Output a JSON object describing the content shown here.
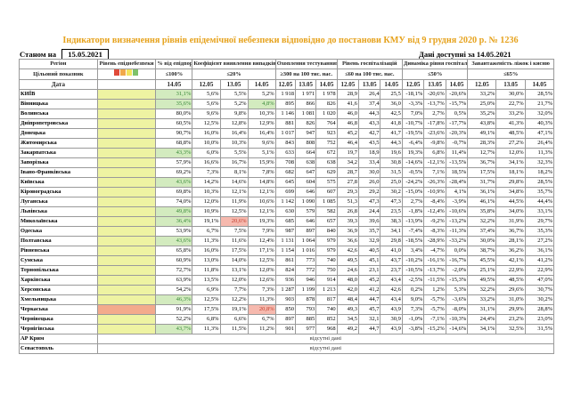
{
  "title": "Індикатори визначення рівнів епідемічної небезпеки відповідно до постанови КМУ від 9 грудня 2020 р. № 1236",
  "status_label": "Станом на",
  "status_date": "15.05.2021",
  "data_available": "Дані доступні за 14.05.2021",
  "headers": {
    "region": "Регіон",
    "target": "Цільовий показник",
    "date": "Дата",
    "level": "Рівень епіднебезпеки",
    "oxygen": "% від епідпорогу",
    "coef": "Коефіцієнт виявлення випадків інфікування",
    "testing": "Охоплення тестуванням",
    "hosp": "Рівень госпіталізацій",
    "dyn": "Динаміка рівня госпіталізацій",
    "beds": "Завантаженість ліжок і кисню"
  },
  "thresholds": {
    "oxygen": "≤100%",
    "coef": "≤20%",
    "testing": "≥300 на 100 тис. нас.",
    "hosp": "≤60 на 100 тис. нас.",
    "dyn": "≤50%",
    "beds": "≤65%"
  },
  "dates": {
    "oxygen": "14.05",
    "coef": [
      "12.05",
      "13.05",
      "14.05"
    ],
    "testing": [
      "12.05",
      "13.05",
      "14.05"
    ],
    "hosp": [
      "12.05",
      "13.05",
      "14.05"
    ],
    "dyn": [
      "12.05",
      "13.05",
      "14.05"
    ],
    "beds": [
      "12.05",
      "13.05",
      "14.05"
    ]
  },
  "legend_colors": [
    "#e04b3a",
    "#f1a84a",
    "#f3e45c",
    "#7fc26b"
  ],
  "level_green": "#eef3a2",
  "level_red": "#f3aa8c",
  "missing_text": "відсутні дані",
  "regions": [
    {
      "name": "КИЇВ",
      "pct": "31,1%",
      "pg": 1,
      "coef": [
        "5,6%",
        "5,5%",
        "5,2%"
      ],
      "cf": [
        0,
        0,
        0
      ],
      "test": [
        "1 918",
        "1 971",
        "1 978"
      ],
      "hosp": [
        "28,9",
        "26,4",
        "25,5"
      ],
      "dyn": [
        "-18,1%",
        "-20,6%",
        "-20,6%"
      ],
      "beds": [
        "33,2%",
        "30,0%",
        "28,5%"
      ],
      "lvl": "g"
    },
    {
      "name": "Вінницька",
      "pct": "35,6%",
      "pg": 1,
      "coef": [
        "5,6%",
        "5,2%",
        "4,8%"
      ],
      "cf": [
        0,
        0,
        1
      ],
      "test": [
        "895",
        "866",
        "826"
      ],
      "hosp": [
        "41,6",
        "37,4",
        "36,0"
      ],
      "dyn": [
        "-3,3%",
        "-13,7%",
        "-15,7%"
      ],
      "beds": [
        "25,0%",
        "22,7%",
        "21,7%"
      ],
      "lvl": "g"
    },
    {
      "name": "Волинська",
      "pct": "80,0%",
      "pg": 0,
      "coef": [
        "9,6%",
        "9,8%",
        "10,3%"
      ],
      "cf": [
        0,
        0,
        0
      ],
      "test": [
        "1 146",
        "1 081",
        "1 020"
      ],
      "hosp": [
        "46,0",
        "44,3",
        "42,5"
      ],
      "dyn": [
        "7,0%",
        "2,7%",
        "0,5%"
      ],
      "beds": [
        "35,2%",
        "33,2%",
        "32,0%"
      ],
      "lvl": "g"
    },
    {
      "name": "Дніпропетровська",
      "pct": "60,5%",
      "pg": 0,
      "coef": [
        "12,5%",
        "12,8%",
        "12,9%"
      ],
      "cf": [
        0,
        0,
        0
      ],
      "test": [
        "881",
        "826",
        "764"
      ],
      "hosp": [
        "46,8",
        "43,3",
        "41,8"
      ],
      "dyn": [
        "-10,7%",
        "-17,8%",
        "-17,7%"
      ],
      "beds": [
        "43,8%",
        "41,3%",
        "40,3%"
      ],
      "lvl": "g"
    },
    {
      "name": "Донецька",
      "pct": "90,7%",
      "pg": 0,
      "coef": [
        "16,0%",
        "16,4%",
        "16,4%"
      ],
      "cf": [
        0,
        0,
        0
      ],
      "test": [
        "1 017",
        "947",
        "923"
      ],
      "hosp": [
        "45,2",
        "42,7",
        "41,7"
      ],
      "dyn": [
        "-19,5%",
        "-23,6%",
        "-20,3%"
      ],
      "beds": [
        "49,1%",
        "48,5%",
        "47,1%"
      ],
      "lvl": "g"
    },
    {
      "name": "Житомирська",
      "pct": "68,8%",
      "pg": 0,
      "coef": [
        "10,0%",
        "10,3%",
        "9,6%"
      ],
      "cf": [
        0,
        0,
        0
      ],
      "test": [
        "843",
        "808",
        "752"
      ],
      "hosp": [
        "46,4",
        "43,5",
        "44,3"
      ],
      "dyn": [
        "-6,4%",
        "-9,8%",
        "-0,7%"
      ],
      "beds": [
        "28,3%",
        "27,2%",
        "26,4%"
      ],
      "lvl": "g"
    },
    {
      "name": "Закарпатська",
      "pct": "43,3%",
      "pg": 1,
      "coef": [
        "6,0%",
        "5,5%",
        "5,1%"
      ],
      "cf": [
        0,
        0,
        0
      ],
      "test": [
        "633",
        "664",
        "672"
      ],
      "hosp": [
        "19,7",
        "18,9",
        "19,6"
      ],
      "dyn": [
        "19,3%",
        "6,8%",
        "11,4%"
      ],
      "beds": [
        "12,7%",
        "12,0%",
        "11,3%"
      ],
      "lvl": "g"
    },
    {
      "name": "Запорізька",
      "pct": "57,9%",
      "pg": 0,
      "coef": [
        "16,6%",
        "16,7%",
        "15,9%"
      ],
      "cf": [
        0,
        0,
        0
      ],
      "test": [
        "708",
        "638",
        "638"
      ],
      "hosp": [
        "34,2",
        "33,4",
        "30,8"
      ],
      "dyn": [
        "-14,6%",
        "-12,1%",
        "-13,5%"
      ],
      "beds": [
        "36,7%",
        "34,1%",
        "32,3%"
      ],
      "lvl": "g"
    },
    {
      "name": "Івано-Франківська",
      "pct": "69,2%",
      "pg": 0,
      "coef": [
        "7,3%",
        "8,1%",
        "7,8%"
      ],
      "cf": [
        0,
        0,
        0
      ],
      "test": [
        "682",
        "647",
        "629"
      ],
      "hosp": [
        "28,7",
        "30,0",
        "31,5"
      ],
      "dyn": [
        "-0,5%",
        "7,1%",
        "18,5%"
      ],
      "beds": [
        "17,5%",
        "18,1%",
        "18,2%"
      ],
      "lvl": "g"
    },
    {
      "name": "Київська",
      "pct": "43,6%",
      "pg": 1,
      "coef": [
        "14,2%",
        "14,6%",
        "14,8%"
      ],
      "cf": [
        0,
        0,
        0
      ],
      "test": [
        "645",
        "604",
        "575"
      ],
      "hosp": [
        "27,8",
        "26,0",
        "25,0"
      ],
      "dyn": [
        "-24,2%",
        "-26,3%",
        "-28,4%"
      ],
      "beds": [
        "31,7%",
        "29,8%",
        "28,5%"
      ],
      "lvl": "g"
    },
    {
      "name": "Кіровоградська",
      "pct": "69,8%",
      "pg": 0,
      "coef": [
        "10,3%",
        "12,1%",
        "12,1%"
      ],
      "cf": [
        0,
        0,
        0
      ],
      "test": [
        "699",
        "646",
        "607"
      ],
      "hosp": [
        "29,3",
        "29,2",
        "30,2"
      ],
      "dyn": [
        "-15,0%",
        "-10,9%",
        "4,1%"
      ],
      "beds": [
        "36,1%",
        "34,8%",
        "35,7%"
      ],
      "lvl": "g"
    },
    {
      "name": "Луганська",
      "pct": "74,0%",
      "pg": 0,
      "coef": [
        "12,0%",
        "11,9%",
        "10,6%"
      ],
      "cf": [
        0,
        0,
        0
      ],
      "test": [
        "1 142",
        "1 090",
        "1 085"
      ],
      "hosp": [
        "51,3",
        "47,3",
        "47,3"
      ],
      "dyn": [
        "2,7%",
        "-8,4%",
        "-3,9%"
      ],
      "beds": [
        "46,1%",
        "44,5%",
        "44,4%"
      ],
      "lvl": "g"
    },
    {
      "name": "Львівська",
      "pct": "49,8%",
      "pg": 1,
      "coef": [
        "10,9%",
        "12,5%",
        "12,1%"
      ],
      "cf": [
        0,
        0,
        0
      ],
      "test": [
        "630",
        "579",
        "582"
      ],
      "hosp": [
        "26,8",
        "24,4",
        "23,5"
      ],
      "dyn": [
        "-1,8%",
        "-12,4%",
        "-10,6%"
      ],
      "beds": [
        "35,8%",
        "34,0%",
        "33,1%"
      ],
      "lvl": "g"
    },
    {
      "name": "Миколаївська",
      "pct": "36,4%",
      "pg": 1,
      "coef": [
        "19,1%",
        "20,6%",
        "19,3%"
      ],
      "cf": [
        0,
        1,
        0
      ],
      "test": [
        "685",
        "646",
        "657"
      ],
      "hosp": [
        "39,3",
        "39,6",
        "38,3"
      ],
      "dyn": [
        "-13,9%",
        "-9,2%",
        "-13,2%"
      ],
      "beds": [
        "32,2%",
        "31,9%",
        "29,7%"
      ],
      "lvl": "g"
    },
    {
      "name": "Одеська",
      "pct": "53,9%",
      "pg": 0,
      "coef": [
        "6,7%",
        "7,5%",
        "7,9%"
      ],
      "cf": [
        0,
        0,
        0
      ],
      "test": [
        "987",
        "897",
        "840"
      ],
      "hosp": [
        "36,9",
        "35,7",
        "34,1"
      ],
      "dyn": [
        "-7,4%",
        "-8,3%",
        "-11,3%"
      ],
      "beds": [
        "37,4%",
        "36,7%",
        "35,3%"
      ],
      "lvl": "g"
    },
    {
      "name": "Полтавська",
      "pct": "43,6%",
      "pg": 1,
      "coef": [
        "11,3%",
        "11,6%",
        "12,4%"
      ],
      "cf": [
        0,
        0,
        0
      ],
      "test": [
        "1 131",
        "1 064",
        "979"
      ],
      "hosp": [
        "36,6",
        "32,9",
        "29,8"
      ],
      "dyn": [
        "-18,5%",
        "-28,9%",
        "-33,2%"
      ],
      "beds": [
        "30,0%",
        "28,1%",
        "27,2%"
      ],
      "lvl": "g"
    },
    {
      "name": "Рівненська",
      "pct": "65,8%",
      "pg": 0,
      "coef": [
        "16,0%",
        "17,5%",
        "17,1%"
      ],
      "cf": [
        0,
        0,
        0
      ],
      "test": [
        "1 154",
        "1 016",
        "979"
      ],
      "hosp": [
        "42,6",
        "40,5",
        "41,0"
      ],
      "dyn": [
        "3,4%",
        "-4,7%",
        "0,0%"
      ],
      "beds": [
        "38,7%",
        "36,2%",
        "36,1%"
      ],
      "lvl": "g"
    },
    {
      "name": "Сумська",
      "pct": "60,9%",
      "pg": 0,
      "coef": [
        "13,0%",
        "14,0%",
        "12,5%"
      ],
      "cf": [
        0,
        0,
        0
      ],
      "test": [
        "861",
        "773",
        "740"
      ],
      "hosp": [
        "49,5",
        "45,1",
        "43,7"
      ],
      "dyn": [
        "-10,2%",
        "-16,1%",
        "-16,7%"
      ],
      "beds": [
        "45,5%",
        "42,1%",
        "41,2%"
      ],
      "lvl": "g"
    },
    {
      "name": "Тернопільська",
      "pct": "72,7%",
      "pg": 0,
      "coef": [
        "11,8%",
        "13,1%",
        "12,0%"
      ],
      "cf": [
        0,
        0,
        0
      ],
      "test": [
        "824",
        "772",
        "750"
      ],
      "hosp": [
        "24,6",
        "23,1",
        "23,7"
      ],
      "dyn": [
        "-10,5%",
        "-13,7%",
        "-2,0%"
      ],
      "beds": [
        "25,1%",
        "22,9%",
        "22,9%"
      ],
      "lvl": "g"
    },
    {
      "name": "Харківська",
      "pct": "63,9%",
      "pg": 0,
      "coef": [
        "13,5%",
        "12,0%",
        "12,6%"
      ],
      "cf": [
        0,
        0,
        0
      ],
      "test": [
        "936",
        "946",
        "914"
      ],
      "hosp": [
        "48,0",
        "45,2",
        "43,4"
      ],
      "dyn": [
        "-2,5%",
        "-11,5%",
        "-15,3%"
      ],
      "beds": [
        "49,5%",
        "48,5%",
        "47,0%"
      ],
      "lvl": "g"
    },
    {
      "name": "Херсонська",
      "pct": "54,2%",
      "pg": 0,
      "coef": [
        "6,9%",
        "7,7%",
        "7,3%"
      ],
      "cf": [
        0,
        0,
        0
      ],
      "test": [
        "1 287",
        "1 199",
        "1 213"
      ],
      "hosp": [
        "42,0",
        "41,2",
        "42,6"
      ],
      "dyn": [
        "0,2%",
        "1,2%",
        "5,3%"
      ],
      "beds": [
        "32,2%",
        "29,6%",
        "30,7%"
      ],
      "lvl": "g"
    },
    {
      "name": "Хмельницька",
      "pct": "46,3%",
      "pg": 1,
      "coef": [
        "12,5%",
        "12,2%",
        "11,3%"
      ],
      "cf": [
        0,
        0,
        0
      ],
      "test": [
        "903",
        "878",
        "817"
      ],
      "hosp": [
        "48,4",
        "44,7",
        "43,4"
      ],
      "dyn": [
        "9,0%",
        "-5,7%",
        "-3,6%"
      ],
      "beds": [
        "33,2%",
        "31,0%",
        "30,2%"
      ],
      "lvl": "g"
    },
    {
      "name": "Черкаська",
      "pct": "91,9%",
      "pg": 0,
      "coef": [
        "17,5%",
        "19,1%",
        "20,8%"
      ],
      "cf": [
        0,
        0,
        1
      ],
      "test": [
        "850",
        "793",
        "740"
      ],
      "hosp": [
        "49,3",
        "45,7",
        "43,9"
      ],
      "dyn": [
        "7,3%",
        "-5,7%",
        "-8,0%"
      ],
      "beds": [
        "31,1%",
        "29,9%",
        "28,8%"
      ],
      "lvl": "r"
    },
    {
      "name": "Чернівецька",
      "pct": "52,2%",
      "pg": 0,
      "coef": [
        "6,8%",
        "6,6%",
        "6,7%"
      ],
      "cf": [
        0,
        0,
        0
      ],
      "test": [
        "897",
        "885",
        "852"
      ],
      "hosp": [
        "34,5",
        "32,1",
        "30,9"
      ],
      "dyn": [
        "-1,0%",
        "-7,1%",
        "-10,3%"
      ],
      "beds": [
        "24,4%",
        "23,2%",
        "23,0%"
      ],
      "lvl": "g"
    },
    {
      "name": "Чернігівська",
      "pct": "43,7%",
      "pg": 1,
      "coef": [
        "11,3%",
        "11,5%",
        "11,2%"
      ],
      "cf": [
        0,
        0,
        0
      ],
      "test": [
        "901",
        "977",
        "968"
      ],
      "hosp": [
        "49,2",
        "44,7",
        "43,9"
      ],
      "dyn": [
        "-3,8%",
        "-15,2%",
        "-14,6%"
      ],
      "beds": [
        "34,1%",
        "32,5%",
        "31,5%"
      ],
      "lvl": "g"
    }
  ],
  "missing_regions": [
    "АР Крим",
    "Севастополь"
  ]
}
